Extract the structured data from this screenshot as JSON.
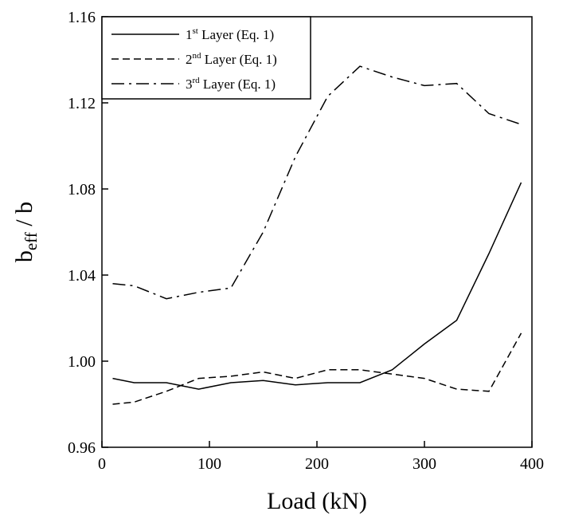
{
  "chart_data": {
    "type": "line",
    "xlabel": "Load (kN)",
    "ylabel": {
      "main": "b",
      "sub": "eff",
      "tail": " / b"
    },
    "xlim": [
      0,
      400
    ],
    "ylim": [
      0.96,
      1.16
    ],
    "xticks": [
      0,
      100,
      200,
      300,
      400
    ],
    "yticks": [
      0.96,
      1.0,
      1.04,
      1.08,
      1.12,
      1.16
    ],
    "xtick_labels": [
      "0",
      "100",
      "200",
      "300",
      "400"
    ],
    "ytick_labels": [
      "0.96",
      "1.00",
      "1.04",
      "1.08",
      "1.12",
      "1.16"
    ],
    "grid": false,
    "legend_position": "top-left",
    "series": [
      {
        "name": "1st Layer (Eq. 1)",
        "legend": {
          "ord": "1",
          "sup": "st",
          "rest": " Layer (Eq. 1)"
        },
        "dash": "solid",
        "x": [
          10,
          30,
          60,
          90,
          120,
          150,
          180,
          210,
          240,
          270,
          300,
          330,
          360,
          390
        ],
        "y": [
          0.992,
          0.99,
          0.99,
          0.987,
          0.99,
          0.991,
          0.989,
          0.99,
          0.99,
          0.996,
          1.008,
          1.019,
          1.05,
          1.083
        ]
      },
      {
        "name": "2nd Layer (Eq. 1)",
        "legend": {
          "ord": "2",
          "sup": "nd",
          "rest": " Layer (Eq. 1)"
        },
        "dash": "dashed",
        "x": [
          10,
          30,
          60,
          90,
          120,
          150,
          180,
          210,
          240,
          270,
          300,
          330,
          360,
          390
        ],
        "y": [
          0.98,
          0.981,
          0.986,
          0.992,
          0.993,
          0.995,
          0.992,
          0.996,
          0.996,
          0.994,
          0.992,
          0.987,
          0.986,
          1.013
        ]
      },
      {
        "name": "3rd Layer (Eq. 1)",
        "legend": {
          "ord": "3",
          "sup": "rd",
          "rest": " Layer (Eq. 1)"
        },
        "dash": "dashdot",
        "x": [
          10,
          30,
          60,
          90,
          120,
          150,
          180,
          210,
          240,
          270,
          300,
          330,
          360,
          390
        ],
        "y": [
          1.036,
          1.035,
          1.029,
          1.032,
          1.034,
          1.06,
          1.095,
          1.123,
          1.137,
          1.132,
          1.128,
          1.129,
          1.115,
          1.11
        ]
      }
    ]
  }
}
